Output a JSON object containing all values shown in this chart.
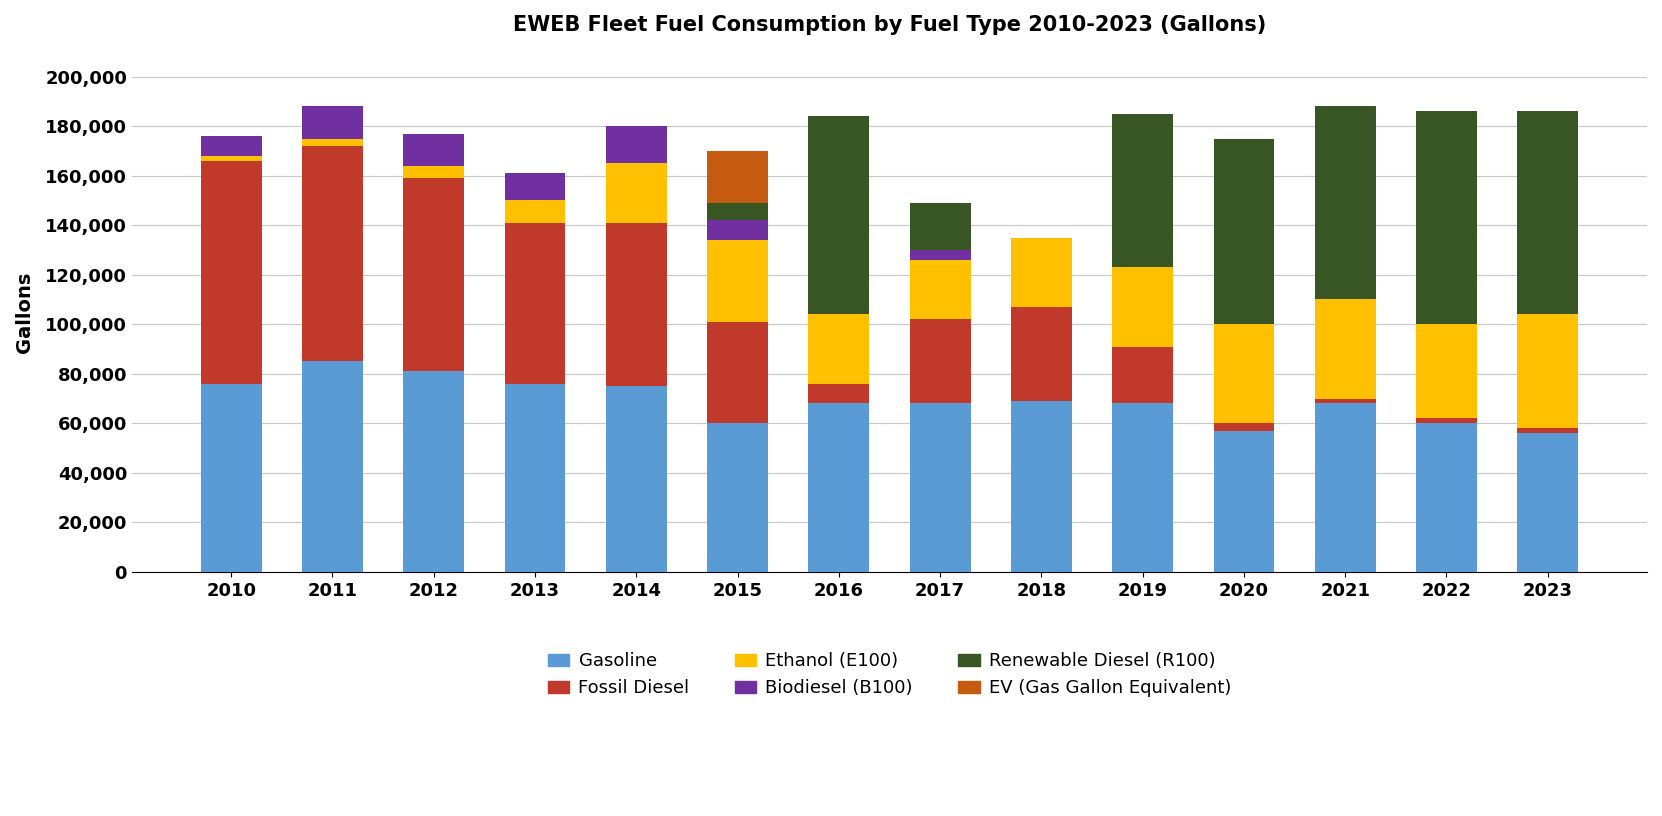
{
  "years": [
    2010,
    2011,
    2012,
    2013,
    2014,
    2015,
    2016,
    2017,
    2018,
    2019,
    2020,
    2021,
    2022,
    2023
  ],
  "gasoline": [
    76000,
    85000,
    81000,
    76000,
    75000,
    60000,
    68000,
    68000,
    69000,
    68000,
    57000,
    68000,
    60000,
    56000
  ],
  "fossil_diesel": [
    90000,
    87000,
    78000,
    65000,
    66000,
    41000,
    8000,
    34000,
    38000,
    23000,
    3000,
    2000,
    2000,
    2000
  ],
  "ethanol_e100": [
    2000,
    3000,
    5000,
    9000,
    24000,
    33000,
    28000,
    24000,
    28000,
    32000,
    40000,
    40000,
    38000,
    46000
  ],
  "biodiesel_b100": [
    8000,
    13000,
    13000,
    11000,
    15000,
    8000,
    0,
    4000,
    0,
    0,
    0,
    0,
    0,
    0
  ],
  "renewable_diesel": [
    0,
    0,
    0,
    0,
    0,
    7000,
    80000,
    19000,
    0,
    62000,
    75000,
    78000,
    86000,
    82000
  ],
  "ev_gge": [
    0,
    0,
    0,
    0,
    0,
    21000,
    0,
    0,
    0,
    0,
    0,
    0,
    0,
    0
  ],
  "title": "EWEB Fleet Fuel Consumption by Fuel Type 2010-2023 (Gallons)",
  "ylabel": "Gallons",
  "ylim": [
    0,
    210000
  ],
  "yticks": [
    0,
    20000,
    40000,
    60000,
    80000,
    100000,
    120000,
    140000,
    160000,
    180000,
    200000
  ],
  "colors": {
    "gasoline": "#5b9bd5",
    "fossil_diesel": "#c0392b",
    "ethanol_e100": "#ffc000",
    "biodiesel_b100": "#7030a0",
    "renewable_diesel": "#375623",
    "ev_gge": "#c55a11"
  },
  "legend_labels": [
    "Gasoline",
    "Fossil Diesel",
    "Ethanol (E100)",
    "Biodiesel (B100)",
    "Renewable Diesel (R100)",
    "EV (Gas Gallon Equivalent)"
  ],
  "background_color": "#ffffff"
}
